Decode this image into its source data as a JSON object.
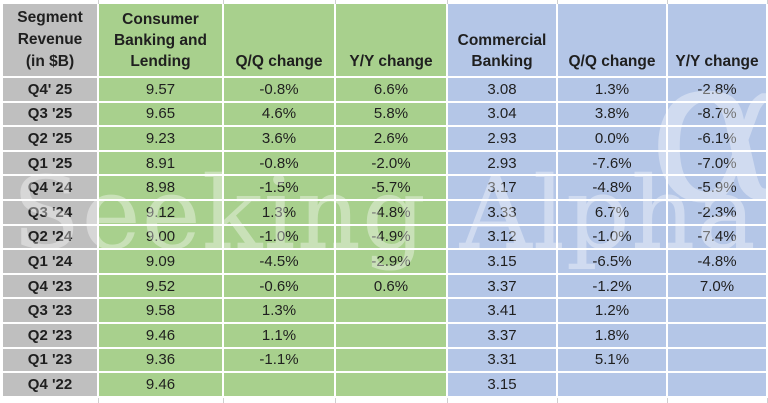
{
  "colors": {
    "consumer_fill": "#A8D08D",
    "commercial_fill": "#B4C6E7",
    "label_fill": "#BFBFBF",
    "gridline": "#FFFFFF",
    "edge_gridline": "#CFCFCF",
    "text": "#1F1F1F",
    "watermark": "#FFFFFF"
  },
  "watermark": {
    "text": "Seeking Alpha",
    "symbol": "α"
  },
  "chart_data": {
    "type": "table",
    "title": "Segment Revenue (in $B)",
    "corner_header": "Segment\nRevenue\n(in $B)",
    "column_headers": [
      "Consumer\nBanking and\nLending",
      "Q/Q change",
      "Y/Y change",
      "Commercial\nBanking",
      "Q/Q change",
      "Y/Y change"
    ],
    "column_groups": [
      {
        "name": "Consumer Banking and Lending",
        "color": "#A8D08D"
      },
      {
        "name": "Commercial Banking",
        "color": "#B4C6E7"
      }
    ],
    "rows": [
      {
        "label": "Q4' 25",
        "values": [
          "9.57",
          "-0.8%",
          "6.6%",
          "3.08",
          "1.3%",
          "-2.8%"
        ]
      },
      {
        "label": "Q3 '25",
        "values": [
          "9.65",
          "4.6%",
          "5.8%",
          "3.04",
          "3.8%",
          "-8.7%"
        ]
      },
      {
        "label": "Q2 '25",
        "values": [
          "9.23",
          "3.6%",
          "2.6%",
          "2.93",
          "0.0%",
          "-6.1%"
        ]
      },
      {
        "label": "Q1 '25",
        "values": [
          "8.91",
          "-0.8%",
          "-2.0%",
          "2.93",
          "-7.6%",
          "-7.0%"
        ]
      },
      {
        "label": "Q4 '24",
        "values": [
          "8.98",
          "-1.5%",
          "-5.7%",
          "3.17",
          "-4.8%",
          "-5.9%"
        ]
      },
      {
        "label": "Q3 '24",
        "values": [
          "9.12",
          "1.3%",
          "-4.8%",
          "3.33",
          "6.7%",
          "-2.3%"
        ]
      },
      {
        "label": "Q2 '24",
        "values": [
          "9.00",
          "-1.0%",
          "-4.9%",
          "3.12",
          "-1.0%",
          "-7.4%"
        ]
      },
      {
        "label": "Q1 '24",
        "values": [
          "9.09",
          "-4.5%",
          "-2.9%",
          "3.15",
          "-6.5%",
          "-4.8%"
        ]
      },
      {
        "label": "Q4 '23",
        "values": [
          "9.52",
          "-0.6%",
          "0.6%",
          "3.37",
          "-1.2%",
          "7.0%"
        ]
      },
      {
        "label": "Q3 '23",
        "values": [
          "9.58",
          "1.3%",
          "",
          "3.41",
          "1.2%",
          ""
        ]
      },
      {
        "label": "Q2 '23",
        "values": [
          "9.46",
          "1.1%",
          "",
          "3.37",
          "1.8%",
          ""
        ]
      },
      {
        "label": "Q1 '23",
        "values": [
          "9.36",
          "-1.1%",
          "",
          "3.31",
          "5.1%",
          ""
        ]
      },
      {
        "label": "Q4 '22",
        "values": [
          "9.46",
          "",
          "",
          "3.15",
          "",
          ""
        ]
      }
    ]
  }
}
